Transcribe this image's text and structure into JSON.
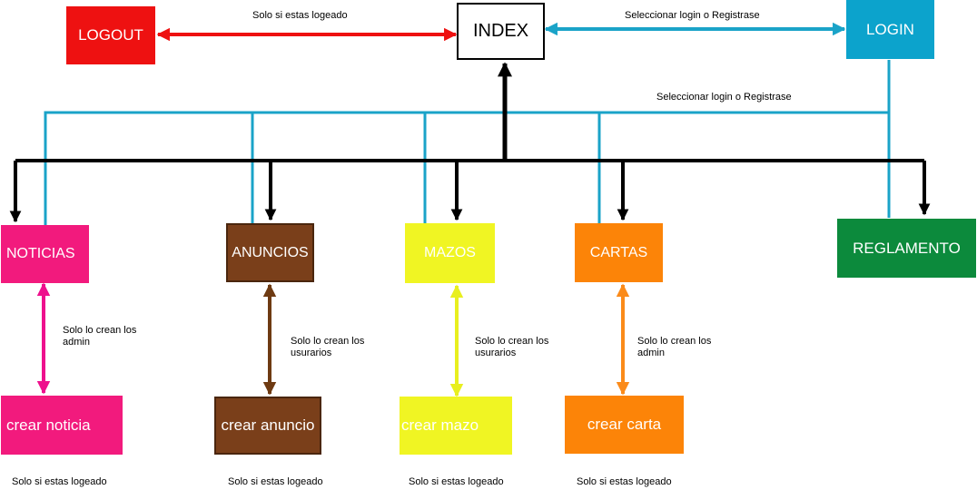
{
  "nodes": {
    "index": "INDEX",
    "logout": "LOGOUT",
    "login": "LOGIN",
    "noticias": "NOTICIAS",
    "anuncios": "ANUNCIOS",
    "mazos": "MAZOS",
    "cartas": "CARTAS",
    "reglamento": "REGLAMENTO",
    "crear_noticia": "crear noticia",
    "crear_anuncio": "crear anuncio",
    "crear_mazo": "crear mazo",
    "crear_carta": "crear carta"
  },
  "labels": {
    "logout_edge": "Solo si estas logeado",
    "login_edge": "Seleccionar login o Registrase",
    "login_bus": "Seleccionar login o Registrase",
    "noticias_edge": "Solo lo crean los\nadmin",
    "anuncios_edge": "Solo lo crean los\nusurarios",
    "mazos_edge": "Solo lo crean los\nusurarios",
    "cartas_edge": "Solo lo crean los\nadmin",
    "footer_noticia": "Solo si estas logeado",
    "footer_anuncio": "Solo si estas logeado",
    "footer_mazo": "Solo si estas logeado",
    "footer_carta": "Solo si estas logeado"
  },
  "colors": {
    "logout": "#ee1111",
    "login": "#0ca3cc",
    "noticias": "#f21a7d",
    "anuncios": "#7a3f1a",
    "mazos": "#f0f523",
    "cartas": "#fc8408",
    "reglamento": "#0c8a3c",
    "black_line": "#000000",
    "blue_line": "#1aa3c8",
    "pink_arrow": "#ee118d",
    "brown_arrow": "#6e3a12",
    "yellow_arrow": "#e8ef1f",
    "orange_arrow": "#fb8b1a"
  }
}
